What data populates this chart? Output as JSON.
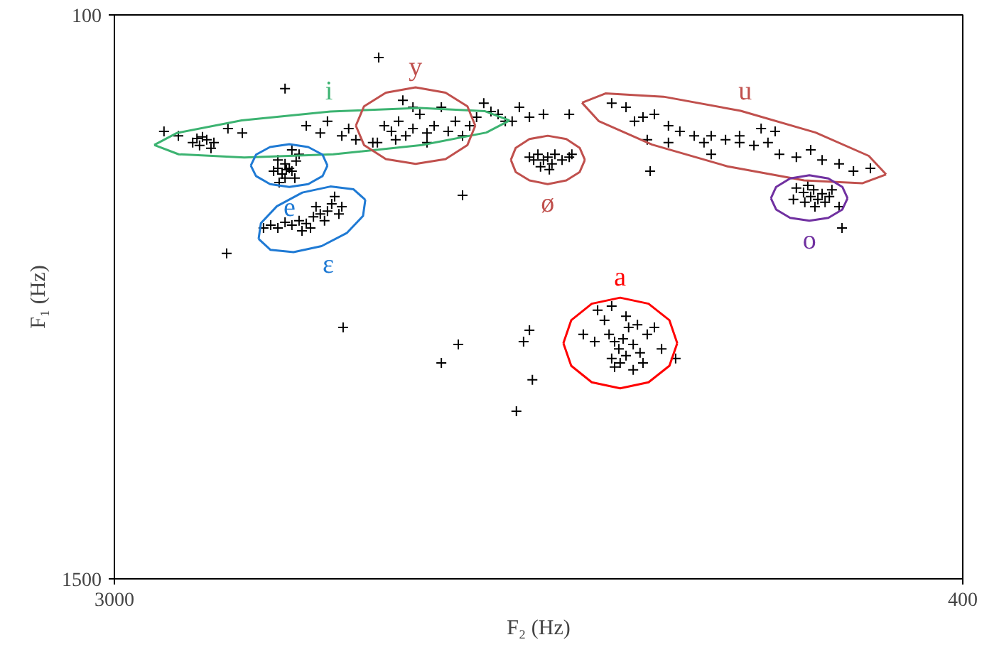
{
  "chart_data": {
    "type": "scatter",
    "xlabel": "F₂ (Hz)",
    "ylabel": "F₁ (Hz)",
    "xlim": [
      3000,
      400
    ],
    "ylim": [
      1500,
      100
    ],
    "xticks": [
      3000,
      400
    ],
    "yticks": [
      100,
      1500
    ],
    "marker": "cross",
    "series": [
      {
        "color": "#000000",
        "x": [
          2760,
          2739,
          2717,
          2747,
          2695,
          2804,
          2652,
          2608,
          2477,
          2848,
          2704,
          2730,
          2412,
          2369,
          2303,
          2260,
          2282,
          2347,
          2194,
          2173,
          2151,
          2129,
          2107,
          2085,
          2064,
          2042,
          2020,
          1998,
          1977,
          1955,
          1933,
          1911,
          2085,
          2116,
          2190,
          2208,
          2138,
          2042,
          1868,
          1846,
          1824,
          1802,
          1890,
          2499,
          2486,
          2477,
          2464,
          2456,
          2443,
          2477,
          2499,
          2434,
          2456,
          2512,
          2447,
          2473,
          2495,
          2521,
          2499,
          2477,
          2456,
          2434,
          2412,
          2390,
          2369,
          2347,
          2334,
          2325,
          2356,
          2399,
          2312,
          2543,
          2425,
          2382,
          2303,
          2656,
          2299,
          1998,
          1946,
          1933,
          1746,
          1728,
          1719,
          1768,
          1728,
          1781,
          1685,
          1759,
          1606,
          1358,
          1406,
          1084,
          1728,
          1702,
          1685,
          1672,
          1650,
          1628,
          1606,
          1659,
          1694,
          1715,
          1598,
          1667,
          1476,
          1432,
          1380,
          1345,
          1302,
          1267,
          1223,
          1193,
          1171,
          1127,
          1084,
          1040,
          997,
          962,
          910,
          866,
          831,
          779,
          735,
          683,
          1302,
          1367,
          1171,
          1018,
          975,
          910,
          888,
          875,
          866,
          857,
          844,
          831,
          822,
          809,
          884,
          801,
          779,
          770,
          919,
          853,
          1519,
          1498,
          1484,
          1467,
          1454,
          1441,
          1432,
          1424,
          1410,
          1397,
          1450,
          1476,
          1389,
          1367,
          1345,
          1528,
          1563,
          1410,
          1467,
          1380,
          1323,
          1280,
          1476,
          1432
        ],
        "values": [
          417,
          424,
          410,
          407,
          417,
          400,
          382,
          393,
          283,
          389,
          431,
          403,
          375,
          393,
          400,
          410,
          382,
          364,
          417,
          375,
          389,
          364,
          400,
          382,
          347,
          393,
          375,
          329,
          389,
          364,
          400,
          375,
          329,
          312,
          206,
          417,
          410,
          417,
          319,
          340,
          347,
          364,
          354,
          481,
          495,
          470,
          481,
          488,
          463,
          505,
          460,
          446,
          435,
          488,
          505,
          484,
          516,
          622,
          629,
          615,
          622,
          611,
          618,
          601,
          594,
          587,
          569,
          551,
          611,
          629,
          594,
          629,
          636,
          576,
          576,
          692,
          876,
          964,
          918,
          548,
          911,
          883,
          1006,
          1084,
          354,
          364,
          347,
          329,
          347,
          488,
          364,
          417,
          453,
          446,
          460,
          453,
          446,
          460,
          453,
          470,
          477,
          460,
          446,
          484,
          319,
          329,
          354,
          347,
          375,
          389,
          400,
          417,
          400,
          410,
          400,
          424,
          417,
          446,
          453,
          435,
          460,
          470,
          488,
          481,
          417,
          410,
          446,
          382,
          389,
          530,
          541,
          523,
          551,
          534,
          558,
          544,
          565,
          551,
          565,
          534,
          576,
          629,
          558,
          576,
          833,
          858,
          893,
          911,
          929,
          904,
          946,
          876,
          918,
          869,
          964,
          953,
          939,
          893,
          876,
          911,
          893,
          981,
          974,
          964,
          929,
          953,
          823,
          848
        ]
      },
      {
        "type": "line",
        "marker": "none",
        "color": "#3cb371",
        "x": [
          1789,
          1860,
          2058,
          2329,
          2602,
          2803,
          2878
        ],
        "values": [
          362,
          392,
          423,
          446,
          454,
          446,
          423
        ]
      },
      {
        "type": "line",
        "marker": "none",
        "name": "i",
        "color": "#3cb371",
        "x": [
          2878,
          2808,
          2610,
          2338,
          2065,
          1864,
          1789
        ],
        "values": [
          423,
          393,
          362,
          340,
          331,
          339,
          362
        ]
      },
      {
        "type": "line",
        "marker": "none",
        "color": "#c0504d",
        "x": [
          1894,
          1918,
          1985,
          2077,
          2168,
          2235,
          2260
        ],
        "values": [
          375,
          423,
          458,
          470,
          458,
          423,
          375
        ]
      },
      {
        "type": "line",
        "marker": "none",
        "name": "y",
        "color": "#c0504d",
        "x": [
          2260,
          2235,
          2168,
          2077,
          1985,
          1918,
          1894
        ],
        "values": [
          375,
          327,
          293,
          280,
          293,
          327,
          375
        ]
      },
      {
        "type": "line",
        "marker": "none",
        "name": "e",
        "color": "#1f7ad4",
        "x": [
          2347,
          2362,
          2406,
          2464,
          2523,
          2566,
          2582
        ],
        "values": [
          474,
          500,
          520,
          527,
          520,
          500,
          474
        ]
      },
      {
        "type": "line",
        "marker": "none",
        "color": "#1f7ad4",
        "x": [
          2582,
          2566,
          2523,
          2464,
          2406,
          2362,
          2347
        ],
        "values": [
          474,
          447,
          428,
          421,
          428,
          447,
          474
        ]
      },
      {
        "type": "line",
        "marker": "none",
        "name": "ε",
        "color": "#1f7ad4",
        "x": [
          2231,
          2238,
          2287,
          2365,
          2451,
          2522,
          2558
        ],
        "values": [
          559,
          599,
          641,
          674,
          689,
          683,
          656
        ]
      },
      {
        "type": "line",
        "marker": "none",
        "color": "#1f7ad4",
        "x": [
          2558,
          2551,
          2502,
          2424,
          2338,
          2267,
          2231
        ],
        "values": [
          656,
          617,
          575,
          541,
          526,
          533,
          559
        ]
      },
      {
        "type": "line",
        "marker": "none",
        "name": "ø",
        "color": "#c0504d",
        "x": [
          1558,
          1574,
          1615,
          1672,
          1728,
          1770,
          1785
        ],
        "values": [
          460,
          490,
          511,
          520,
          511,
          490,
          460
        ]
      },
      {
        "type": "line",
        "marker": "none",
        "color": "#c0504d",
        "x": [
          1785,
          1770,
          1728,
          1672,
          1615,
          1574,
          1558
        ],
        "values": [
          460,
          430,
          408,
          400,
          408,
          430,
          460
        ]
      },
      {
        "type": "line",
        "marker": "none",
        "color": "#c0504d",
        "x": [
          635,
          708,
          886,
          1121,
          1352,
          1515,
          1567
        ],
        "values": [
          496,
          518,
          511,
          476,
          422,
          364,
          318
        ]
      },
      {
        "type": "line",
        "marker": "none",
        "name": "u",
        "color": "#c0504d",
        "x": [
          1567,
          1495,
          1317,
          1081,
          851,
          688,
          635
        ],
        "values": [
          318,
          295,
          303,
          338,
          392,
          450,
          496
        ]
      },
      {
        "type": "line",
        "marker": "none",
        "name": "o",
        "color": "#7030a0",
        "x": [
          753,
          769,
          812,
          870,
          929,
          972,
          988
        ],
        "values": [
          555,
          583,
          604,
          611,
          604,
          583,
          555
        ]
      },
      {
        "type": "line",
        "marker": "none",
        "color": "#7030a0",
        "x": [
          988,
          972,
          929,
          870,
          812,
          769,
          753
        ],
        "values": [
          555,
          527,
          506,
          498,
          506,
          527,
          555
        ]
      },
      {
        "type": "line",
        "marker": "none",
        "color": "#ff0000",
        "x": [
          1275,
          1299,
          1363,
          1450,
          1537,
          1600,
          1624
        ],
        "values": [
          915,
          971,
          1012,
          1027,
          1012,
          971,
          915
        ]
      },
      {
        "type": "line",
        "marker": "none",
        "name": "a",
        "color": "#ff0000",
        "x": [
          1624,
          1600,
          1537,
          1450,
          1363,
          1299,
          1275
        ],
        "values": [
          915,
          858,
          817,
          802,
          817,
          858,
          915
        ]
      }
    ]
  }
}
